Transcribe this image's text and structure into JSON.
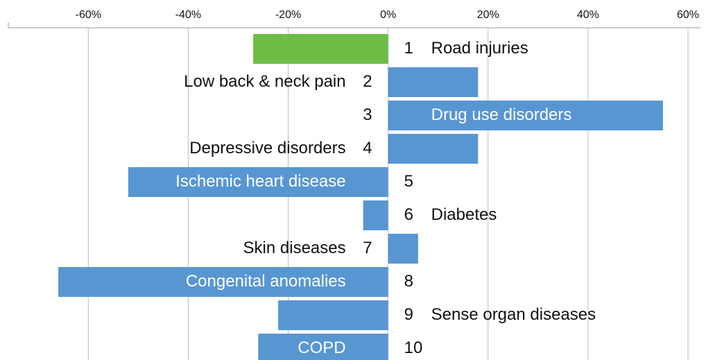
{
  "chart_data": {
    "type": "bar",
    "orientation": "horizontal",
    "ranks": [
      1,
      2,
      3,
      4,
      5,
      6,
      7,
      8,
      9,
      10
    ],
    "categories": [
      "Road injuries",
      "Low back & neck pain",
      "Drug use disorders",
      "Depressive disorders",
      "Ischemic heart disease",
      "Diabetes",
      "Skin diseases",
      "Congenital anomalies",
      "Sense organ diseases",
      "COPD"
    ],
    "values": [
      -27,
      18,
      55,
      18,
      -52,
      -5,
      6,
      -66,
      -22,
      -26
    ],
    "colors": [
      "#6dbd45",
      "#5896d2",
      "#5896d2",
      "#5896d2",
      "#5896d2",
      "#5896d2",
      "#5896d2",
      "#5896d2",
      "#5896d2",
      "#5896d2"
    ],
    "xlim": [
      -76,
      62.5
    ],
    "xticks": [
      {
        "value": -60,
        "label": "-60%"
      },
      {
        "value": -40,
        "label": "-40%"
      },
      {
        "value": -20,
        "label": "-20%"
      },
      {
        "value": 0,
        "label": "0%"
      },
      {
        "value": 20,
        "label": "20%"
      },
      {
        "value": 40,
        "label": "40%"
      },
      {
        "value": 60,
        "label": "60%"
      }
    ],
    "grid": true
  }
}
